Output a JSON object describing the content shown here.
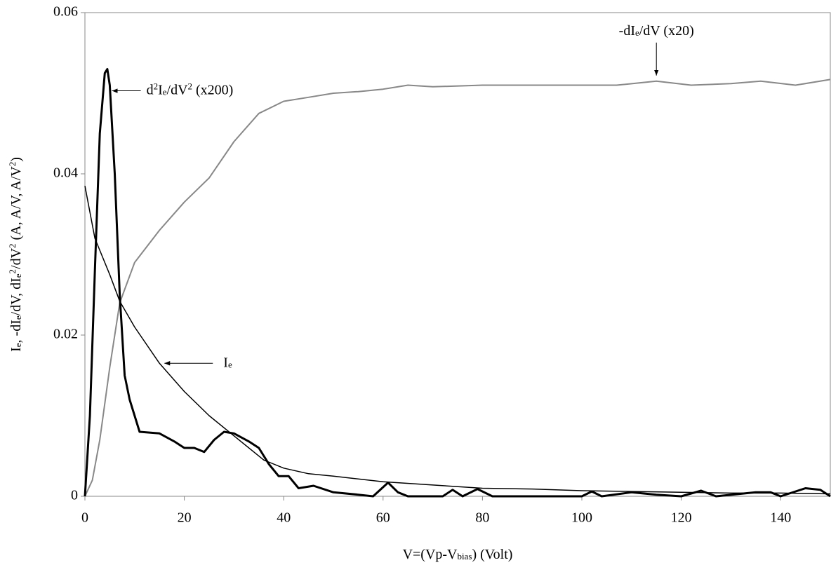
{
  "chart_data": {
    "type": "line",
    "xlim": [
      0,
      150
    ],
    "xticks": [
      0,
      20,
      40,
      60,
      80,
      100,
      120,
      140
    ],
    "ylim": [
      0,
      0.06
    ],
    "yticks": [
      0,
      0.02,
      0.04,
      0.06
    ],
    "grid": false,
    "xlabel": [
      {
        "text": "V=(Vp-V"
      },
      {
        "text": "bias",
        "shift": "sub"
      },
      {
        "text": ") (Volt)"
      }
    ],
    "ylabel": [
      {
        "text": "I"
      },
      {
        "text": "e",
        "shift": "sub"
      },
      {
        "text": ", -dI"
      },
      {
        "text": "e",
        "shift": "sub"
      },
      {
        "text": "/dV, dI"
      },
      {
        "text": "e",
        "shift": "sub"
      },
      {
        "text": "2",
        "shift": "sup"
      },
      {
        "text": "/dV"
      },
      {
        "text": "2",
        "shift": "sup"
      },
      {
        "text": " (A, A/V, A/V"
      },
      {
        "text": "2",
        "shift": "sup"
      },
      {
        "text": ")"
      }
    ],
    "series": [
      {
        "color": "#000000",
        "width": 1.5,
        "x": [
          0,
          2,
          5,
          7,
          10,
          15,
          20,
          25,
          30,
          36,
          40,
          45,
          50,
          60,
          70,
          80,
          90,
          100,
          110,
          120,
          130,
          140,
          150
        ],
        "values": [
          0.0385,
          0.032,
          0.0275,
          0.0242,
          0.021,
          0.0165,
          0.013,
          0.01,
          0.0075,
          0.0045,
          0.0035,
          0.0028,
          0.0025,
          0.0018,
          0.0014,
          0.001,
          0.0009,
          0.0007,
          0.0006,
          0.0005,
          0.0004,
          0.0004,
          0.0003
        ]
      },
      {
        "color": "#888888",
        "width": 2,
        "x": [
          0,
          1.5,
          3,
          5,
          7,
          10,
          15,
          20,
          25,
          30,
          35,
          40,
          45,
          50,
          55,
          60,
          65,
          70,
          80,
          90,
          100,
          107,
          115,
          122,
          130,
          136,
          143,
          150
        ],
        "values": [
          0,
          0.002,
          0.007,
          0.016,
          0.024,
          0.029,
          0.033,
          0.0365,
          0.0395,
          0.044,
          0.0475,
          0.049,
          0.0495,
          0.05,
          0.0502,
          0.0505,
          0.051,
          0.0508,
          0.051,
          0.051,
          0.051,
          0.051,
          0.0515,
          0.051,
          0.0512,
          0.0515,
          0.051,
          0.0517
        ]
      },
      {
        "color": "#000000",
        "width": 3,
        "x": [
          0,
          1,
          2,
          3,
          4,
          4.5,
          5,
          6,
          7,
          8,
          9,
          10,
          11,
          15,
          18,
          20,
          22,
          24,
          26,
          28,
          30,
          33,
          35,
          37,
          39,
          41,
          43,
          46,
          50,
          55,
          58,
          61,
          63,
          65,
          72,
          74,
          76,
          79,
          82,
          90,
          100,
          102,
          104,
          110,
          115,
          120,
          124,
          127,
          135,
          138,
          140,
          145,
          148,
          150
        ],
        "values": [
          0,
          0.01,
          0.028,
          0.045,
          0.0525,
          0.053,
          0.051,
          0.04,
          0.025,
          0.015,
          0.012,
          0.01,
          0.008,
          0.0078,
          0.0068,
          0.006,
          0.006,
          0.0055,
          0.007,
          0.008,
          0.0078,
          0.0068,
          0.006,
          0.004,
          0.0025,
          0.0025,
          0.001,
          0.0013,
          0.0005,
          0.0002,
          0,
          0.0017,
          0.0005,
          0,
          0,
          0.0008,
          0,
          0.0009,
          0,
          0,
          0,
          0.0006,
          0,
          0.0005,
          0.0002,
          0,
          0.0007,
          0,
          0.0005,
          0.0005,
          0,
          0.001,
          0.0008,
          0
        ]
      }
    ],
    "annotations": [
      {
        "parts": [
          {
            "text": "d"
          },
          {
            "text": "2",
            "shift": "sup"
          },
          {
            "text": "I"
          },
          {
            "text": "e",
            "shift": "sub"
          },
          {
            "text": "/dV"
          },
          {
            "text": "2",
            "shift": "sup"
          },
          {
            "text": " (x200)"
          }
        ],
        "at": [
          4.6,
          0.0503
        ]
      },
      {
        "parts": [
          {
            "text": "-dI"
          },
          {
            "text": "e",
            "shift": "sub"
          },
          {
            "text": "/dV (x20)"
          }
        ],
        "at": [
          115,
          0.0515
        ]
      },
      {
        "parts": [
          {
            "text": "I"
          },
          {
            "text": "e",
            "shift": "sub"
          }
        ],
        "at": [
          16,
          0.0165
        ]
      }
    ]
  }
}
